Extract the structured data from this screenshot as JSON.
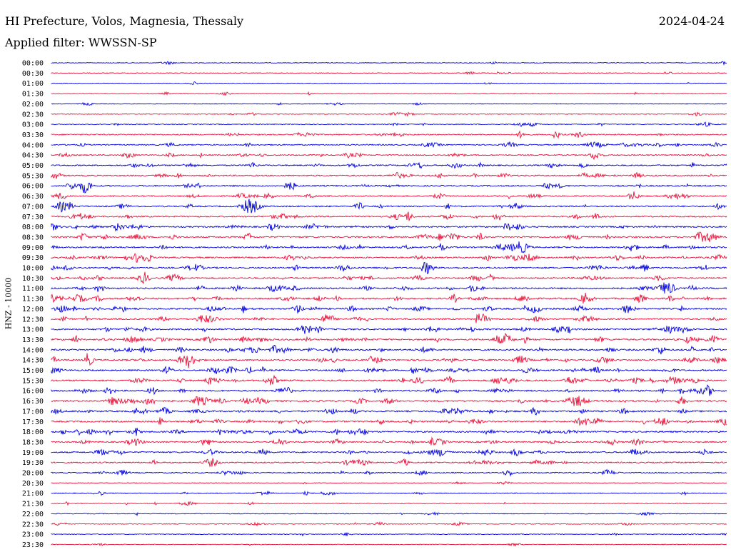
{
  "header": {
    "title": "HI Prefecture, Volos, Magnesia, Thessaly",
    "date": "2024-04-24",
    "filter": "Applied filter: WWSSN-SP"
  },
  "chart_data": {
    "type": "line",
    "title": "HI Prefecture, Volos, Magnesia, Thessaly",
    "ylabel": "HNZ - 10000",
    "xlabel": "",
    "grid": false,
    "colors": [
      "#0000dd",
      "#e8113a"
    ],
    "rows": [
      {
        "label": "00:00",
        "activity": 0.1
      },
      {
        "label": "00:30",
        "activity": 0.15
      },
      {
        "label": "01:00",
        "activity": 0.1
      },
      {
        "label": "01:30",
        "activity": 0.15
      },
      {
        "label": "02:00",
        "activity": 0.15
      },
      {
        "label": "02:30",
        "activity": 0.25
      },
      {
        "label": "03:00",
        "activity": 0.25
      },
      {
        "label": "03:30",
        "activity": 0.45
      },
      {
        "label": "04:00",
        "activity": 0.45
      },
      {
        "label": "04:30",
        "activity": 0.45
      },
      {
        "label": "05:00",
        "activity": 0.5
      },
      {
        "label": "05:30",
        "activity": 0.5
      },
      {
        "label": "06:00",
        "activity": 0.55
      },
      {
        "label": "06:30",
        "activity": 0.55
      },
      {
        "label": "07:00",
        "activity": 0.6
      },
      {
        "label": "07:30",
        "activity": 0.6
      },
      {
        "label": "08:00",
        "activity": 0.65
      },
      {
        "label": "08:30",
        "activity": 0.7
      },
      {
        "label": "09:00",
        "activity": 0.65
      },
      {
        "label": "09:30",
        "activity": 0.65
      },
      {
        "label": "10:00",
        "activity": 0.65
      },
      {
        "label": "10:30",
        "activity": 0.65
      },
      {
        "label": "11:00",
        "activity": 0.7
      },
      {
        "label": "11:30",
        "activity": 0.7
      },
      {
        "label": "12:00",
        "activity": 0.75
      },
      {
        "label": "12:30",
        "activity": 0.7
      },
      {
        "label": "13:00",
        "activity": 0.7
      },
      {
        "label": "13:30",
        "activity": 0.75
      },
      {
        "label": "14:00",
        "activity": 0.75
      },
      {
        "label": "14:30",
        "activity": 0.75
      },
      {
        "label": "15:00",
        "activity": 0.7
      },
      {
        "label": "15:30",
        "activity": 0.75
      },
      {
        "label": "16:00",
        "activity": 0.7
      },
      {
        "label": "16:30",
        "activity": 0.75
      },
      {
        "label": "17:00",
        "activity": 0.7
      },
      {
        "label": "17:30",
        "activity": 0.7
      },
      {
        "label": "18:00",
        "activity": 0.7
      },
      {
        "label": "18:30",
        "activity": 0.6
      },
      {
        "label": "19:00",
        "activity": 0.6
      },
      {
        "label": "19:30",
        "activity": 0.5
      },
      {
        "label": "20:00",
        "activity": 0.4
      },
      {
        "label": "20:30",
        "activity": 0.1
      },
      {
        "label": "21:00",
        "activity": 0.25
      },
      {
        "label": "21:30",
        "activity": 0.2
      },
      {
        "label": "22:00",
        "activity": 0.15
      },
      {
        "label": "22:30",
        "activity": 0.2
      },
      {
        "label": "23:00",
        "activity": 0.15
      },
      {
        "label": "23:30",
        "activity": 0.1
      }
    ]
  }
}
